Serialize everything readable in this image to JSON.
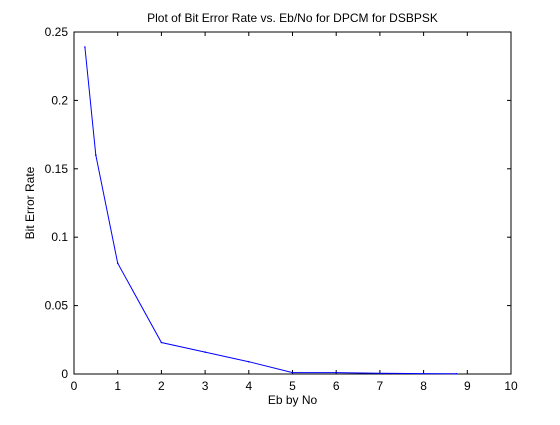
{
  "chart_data": {
    "type": "line",
    "title": "Plot of Bit Error Rate vs. Eb/No for DPCM for DSBPSK",
    "xlabel": "Eb by No",
    "ylabel": "Bit Error Rate",
    "xlim": [
      0,
      10
    ],
    "ylim": [
      0,
      0.25
    ],
    "xticks": [
      "0",
      "1",
      "2",
      "3",
      "4",
      "5",
      "6",
      "7",
      "8",
      "9",
      "10"
    ],
    "yticks": [
      "0",
      "0.05",
      "0.1",
      "0.15",
      "0.2",
      "0.25"
    ],
    "grid": false,
    "series": [
      {
        "color": "#0000ff",
        "x": [
          0.25,
          0.5,
          1,
          2,
          3,
          4,
          5,
          6,
          7,
          8,
          8.75
        ],
        "y": [
          0.239,
          0.16,
          0.081,
          0.023,
          0.016,
          0.009,
          0.001,
          0.001,
          0.0005,
          0.0003,
          0.0002
        ]
      }
    ]
  }
}
